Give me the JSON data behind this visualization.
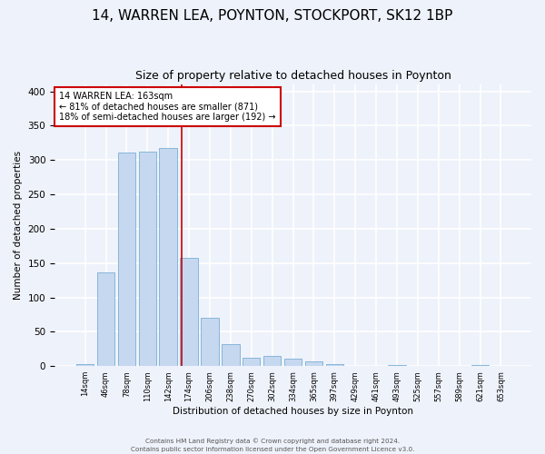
{
  "title": "14, WARREN LEA, POYNTON, STOCKPORT, SK12 1BP",
  "subtitle": "Size of property relative to detached houses in Poynton",
  "xlabel": "Distribution of detached houses by size in Poynton",
  "ylabel": "Number of detached properties",
  "bin_labels": [
    "14sqm",
    "46sqm",
    "78sqm",
    "110sqm",
    "142sqm",
    "174sqm",
    "206sqm",
    "238sqm",
    "270sqm",
    "302sqm",
    "334sqm",
    "365sqm",
    "397sqm",
    "429sqm",
    "461sqm",
    "493sqm",
    "525sqm",
    "557sqm",
    "589sqm",
    "621sqm",
    "653sqm"
  ],
  "bar_heights": [
    3,
    136,
    311,
    312,
    318,
    158,
    70,
    32,
    12,
    15,
    11,
    7,
    3,
    0,
    0,
    2,
    0,
    0,
    0,
    2,
    0
  ],
  "bar_color": "#c5d8f0",
  "bar_edge_color": "#7aafd4",
  "vline_x": 4.63,
  "vline_color": "#cc0000",
  "annotation_text": "14 WARREN LEA: 163sqm\n← 81% of detached houses are smaller (871)\n18% of semi-detached houses are larger (192) →",
  "annotation_box_color": "#ffffff",
  "annotation_box_edge": "#cc0000",
  "footer1": "Contains HM Land Registry data © Crown copyright and database right 2024.",
  "footer2": "Contains public sector information licensed under the Open Government Licence v3.0.",
  "ylim": [
    0,
    410
  ],
  "background_color": "#eef2fa",
  "grid_color": "#ffffff",
  "title_fontsize": 11,
  "subtitle_fontsize": 9
}
